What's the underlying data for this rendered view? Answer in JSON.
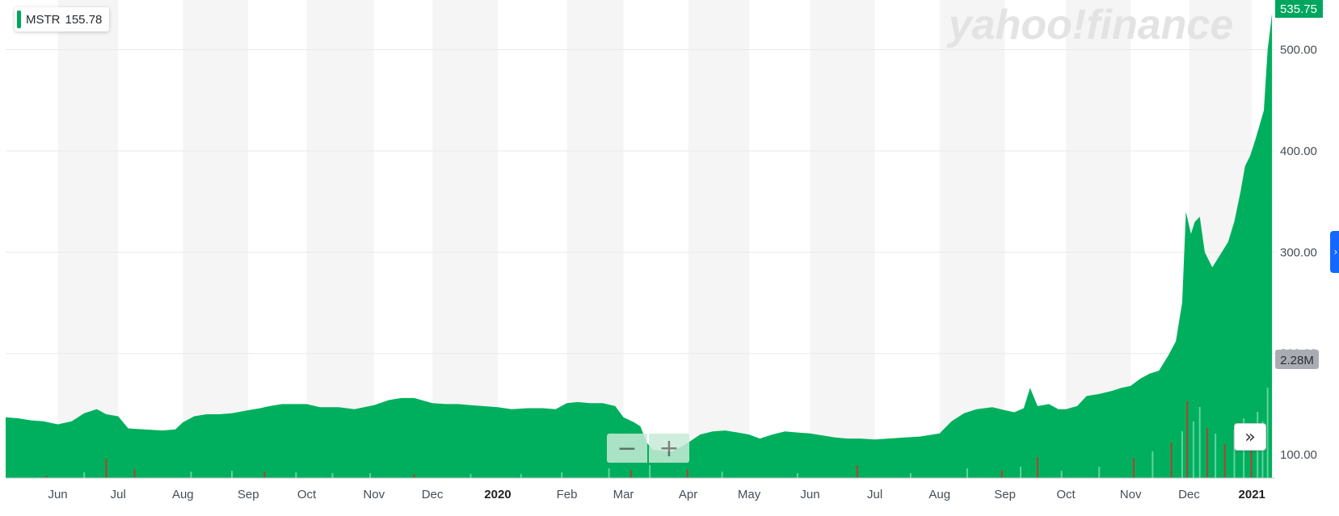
{
  "chart_data": {
    "type": "area",
    "ticker": "MSTR",
    "last_label": "155.78",
    "current_price_label": "535.75",
    "volume_label": "2.28M",
    "watermark": "yahoo!finance",
    "series_color": "#00af5e",
    "volume_colors": {
      "up": "#6ed6a4",
      "down": "#c0392b"
    },
    "ylim": [
      77,
      549
    ],
    "y_ticks": [
      {
        "value": 100,
        "label": "100.00"
      },
      {
        "value": 200,
        "label": "200.00"
      },
      {
        "value": 300,
        "label": "300.00"
      },
      {
        "value": 400,
        "label": "400.00"
      },
      {
        "value": 500,
        "label": "500.00"
      }
    ],
    "xlim": [
      0,
      20.2
    ],
    "x_ticks": [
      {
        "t": 0.83,
        "label": "Jun",
        "bold": false
      },
      {
        "t": 1.79,
        "label": "Jul",
        "bold": false
      },
      {
        "t": 2.82,
        "label": "Aug",
        "bold": false
      },
      {
        "t": 3.86,
        "label": "Sep",
        "bold": false
      },
      {
        "t": 4.79,
        "label": "Oct",
        "bold": false
      },
      {
        "t": 5.86,
        "label": "Nov",
        "bold": false
      },
      {
        "t": 6.79,
        "label": "Dec",
        "bold": false
      },
      {
        "t": 7.83,
        "label": "2020",
        "bold": true
      },
      {
        "t": 8.93,
        "label": "Feb",
        "bold": false
      },
      {
        "t": 9.83,
        "label": "Mar",
        "bold": false
      },
      {
        "t": 10.86,
        "label": "Apr",
        "bold": false
      },
      {
        "t": 11.83,
        "label": "May",
        "bold": false
      },
      {
        "t": 12.8,
        "label": "Jun",
        "bold": false
      },
      {
        "t": 13.83,
        "label": "Jul",
        "bold": false
      },
      {
        "t": 14.86,
        "label": "Aug",
        "bold": false
      },
      {
        "t": 15.9,
        "label": "Sep",
        "bold": false
      },
      {
        "t": 16.87,
        "label": "Oct",
        "bold": false
      },
      {
        "t": 17.9,
        "label": "Nov",
        "bold": false
      },
      {
        "t": 18.83,
        "label": "Dec",
        "bold": false
      },
      {
        "t": 19.83,
        "label": "2021",
        "bold": true
      }
    ],
    "points": [
      [
        0.0,
        137
      ],
      [
        0.2,
        136
      ],
      [
        0.4,
        134
      ],
      [
        0.6,
        133
      ],
      [
        0.83,
        130
      ],
      [
        1.05,
        133
      ],
      [
        1.25,
        141
      ],
      [
        1.45,
        145
      ],
      [
        1.6,
        140
      ],
      [
        1.79,
        138
      ],
      [
        1.95,
        126
      ],
      [
        2.2,
        125
      ],
      [
        2.5,
        124
      ],
      [
        2.7,
        125
      ],
      [
        2.82,
        132
      ],
      [
        3.0,
        138
      ],
      [
        3.2,
        140
      ],
      [
        3.4,
        140
      ],
      [
        3.6,
        141
      ],
      [
        3.86,
        144
      ],
      [
        4.05,
        146
      ],
      [
        4.2,
        148
      ],
      [
        4.4,
        150
      ],
      [
        4.6,
        150
      ],
      [
        4.79,
        150
      ],
      [
        5.0,
        147
      ],
      [
        5.3,
        147
      ],
      [
        5.55,
        145
      ],
      [
        5.86,
        149
      ],
      [
        6.1,
        154
      ],
      [
        6.3,
        156
      ],
      [
        6.5,
        156
      ],
      [
        6.79,
        151
      ],
      [
        7.0,
        150
      ],
      [
        7.2,
        150
      ],
      [
        7.4,
        149
      ],
      [
        7.6,
        148
      ],
      [
        7.83,
        147
      ],
      [
        8.05,
        145
      ],
      [
        8.3,
        146
      ],
      [
        8.55,
        146
      ],
      [
        8.75,
        145
      ],
      [
        8.93,
        151
      ],
      [
        9.1,
        152
      ],
      [
        9.3,
        151
      ],
      [
        9.5,
        151
      ],
      [
        9.7,
        148
      ],
      [
        9.83,
        137
      ],
      [
        10.0,
        132
      ],
      [
        10.1,
        128
      ],
      [
        10.2,
        112
      ],
      [
        10.3,
        105
      ],
      [
        10.45,
        104
      ],
      [
        10.6,
        103
      ],
      [
        10.75,
        108
      ],
      [
        10.86,
        112
      ],
      [
        11.05,
        120
      ],
      [
        11.25,
        123
      ],
      [
        11.45,
        124
      ],
      [
        11.65,
        122
      ],
      [
        11.83,
        120
      ],
      [
        12.0,
        116
      ],
      [
        12.2,
        120
      ],
      [
        12.4,
        123
      ],
      [
        12.6,
        122
      ],
      [
        12.8,
        121
      ],
      [
        13.0,
        119
      ],
      [
        13.2,
        117
      ],
      [
        13.4,
        116
      ],
      [
        13.6,
        116
      ],
      [
        13.83,
        115
      ],
      [
        14.05,
        116
      ],
      [
        14.3,
        117
      ],
      [
        14.55,
        118
      ],
      [
        14.86,
        121
      ],
      [
        15.05,
        133
      ],
      [
        15.25,
        141
      ],
      [
        15.45,
        145
      ],
      [
        15.7,
        147
      ],
      [
        15.9,
        144
      ],
      [
        16.05,
        142
      ],
      [
        16.2,
        146
      ],
      [
        16.3,
        166
      ],
      [
        16.42,
        148
      ],
      [
        16.6,
        150
      ],
      [
        16.75,
        145
      ],
      [
        16.87,
        145
      ],
      [
        17.05,
        148
      ],
      [
        17.2,
        158
      ],
      [
        17.4,
        160
      ],
      [
        17.6,
        163
      ],
      [
        17.75,
        166
      ],
      [
        17.9,
        168
      ],
      [
        18.05,
        175
      ],
      [
        18.2,
        180
      ],
      [
        18.35,
        183
      ],
      [
        18.5,
        198
      ],
      [
        18.62,
        212
      ],
      [
        18.72,
        250
      ],
      [
        18.78,
        340
      ],
      [
        18.86,
        318
      ],
      [
        18.92,
        330
      ],
      [
        19.0,
        335
      ],
      [
        19.08,
        300
      ],
      [
        19.2,
        285
      ],
      [
        19.3,
        295
      ],
      [
        19.45,
        310
      ],
      [
        19.55,
        330
      ],
      [
        19.65,
        360
      ],
      [
        19.72,
        385
      ],
      [
        19.8,
        395
      ],
      [
        19.88,
        410
      ],
      [
        19.95,
        425
      ],
      [
        20.02,
        440
      ],
      [
        20.08,
        500
      ],
      [
        20.12,
        520
      ],
      [
        20.15,
        535.75
      ]
    ],
    "volume": [
      [
        0.65,
        3,
        "down"
      ],
      [
        1.25,
        7,
        "up"
      ],
      [
        1.6,
        24,
        "down"
      ],
      [
        2.05,
        11,
        "down"
      ],
      [
        2.95,
        8,
        "up"
      ],
      [
        3.6,
        9,
        "up"
      ],
      [
        4.12,
        8,
        "down"
      ],
      [
        4.62,
        7,
        "up"
      ],
      [
        5.2,
        6,
        "up"
      ],
      [
        5.8,
        6,
        "up"
      ],
      [
        6.5,
        5,
        "down"
      ],
      [
        7.4,
        5,
        "up"
      ],
      [
        8.2,
        5,
        "up"
      ],
      [
        8.85,
        7,
        "up"
      ],
      [
        9.6,
        12,
        "up"
      ],
      [
        9.95,
        10,
        "down"
      ],
      [
        10.25,
        16,
        "up"
      ],
      [
        10.85,
        11,
        "down"
      ],
      [
        11.4,
        8,
        "up"
      ],
      [
        12.6,
        6,
        "up"
      ],
      [
        13.55,
        16,
        "down"
      ],
      [
        14.4,
        6,
        "up"
      ],
      [
        15.3,
        12,
        "up"
      ],
      [
        15.85,
        10,
        "down"
      ],
      [
        16.15,
        14,
        "up"
      ],
      [
        16.42,
        26,
        "down"
      ],
      [
        16.8,
        9,
        "up"
      ],
      [
        17.4,
        14,
        "up"
      ],
      [
        17.95,
        25,
        "down"
      ],
      [
        18.25,
        33,
        "up"
      ],
      [
        18.55,
        44,
        "down"
      ],
      [
        18.72,
        58,
        "up"
      ],
      [
        18.8,
        95,
        "down"
      ],
      [
        18.9,
        70,
        "up"
      ],
      [
        19.0,
        88,
        "up"
      ],
      [
        19.12,
        62,
        "down"
      ],
      [
        19.25,
        55,
        "up"
      ],
      [
        19.4,
        42,
        "down"
      ],
      [
        19.55,
        60,
        "up"
      ],
      [
        19.7,
        74,
        "up"
      ],
      [
        19.82,
        68,
        "down"
      ],
      [
        19.92,
        82,
        "up"
      ],
      [
        20.0,
        70,
        "up"
      ],
      [
        20.08,
        112,
        "up"
      ]
    ],
    "grid": true
  }
}
